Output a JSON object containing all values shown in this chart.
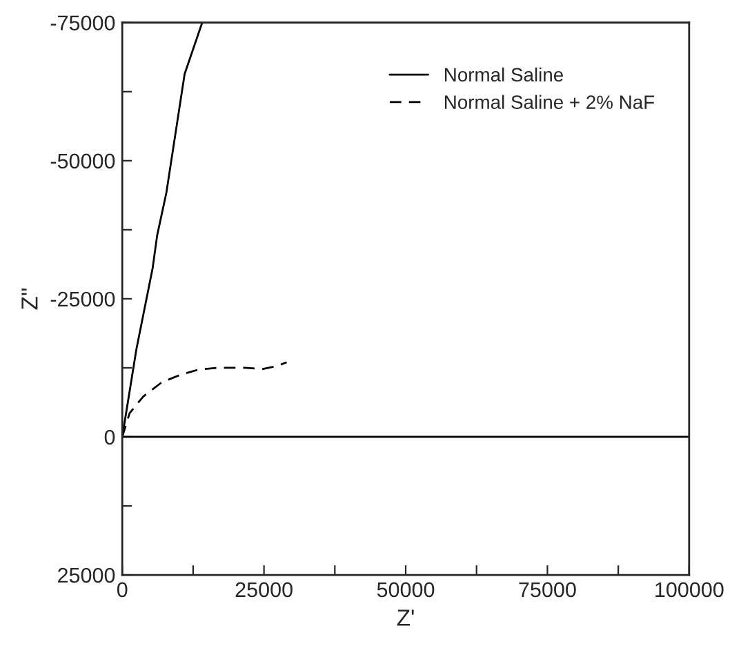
{
  "chart_data": {
    "type": "line",
    "xlabel": "Z'",
    "ylabel": "Z''",
    "xlim": [
      0,
      100000
    ],
    "ylim": [
      25000,
      -75000
    ],
    "xticks": [
      0,
      {
        "value": 12500,
        "label": null
      },
      25000,
      {
        "value": 37500,
        "label": null
      },
      50000,
      {
        "value": 62500,
        "label": null
      },
      75000,
      {
        "value": 87500,
        "label": null
      },
      100000
    ],
    "yticks": [
      {
        "value": 25000,
        "label": "25000"
      },
      {
        "value": 12500,
        "label": null
      },
      0,
      {
        "value": -12500,
        "label": null
      },
      -25000,
      {
        "value": -37500,
        "label": null
      },
      -50000,
      {
        "value": -62500,
        "label": null
      },
      -75000
    ],
    "grid": false,
    "legend": "top right",
    "ref_lines": [
      {
        "axis": "y",
        "value": 0,
        "color": "#000000",
        "line_style": "solid"
      }
    ],
    "series": [
      {
        "name": "Normal Saline",
        "color": "#000000",
        "line_style": "solid",
        "x": [
          0,
          2500,
          5350,
          6160,
          7780,
          11000,
          14100
        ],
        "values": [
          0,
          -15900,
          -30500,
          -36500,
          -44200,
          -65700,
          -75000
        ]
      },
      {
        "name": "Normal Saline + 2% NaF",
        "color": "#000000",
        "line_style": "dashed",
        "x": [
          0,
          1300,
          3700,
          7000,
          10200,
          13500,
          16700,
          21600,
          24800,
          27200,
          29000
        ],
        "values": [
          0,
          -4300,
          -7300,
          -9900,
          -11200,
          -12200,
          -12500,
          -12500,
          -12300,
          -12800,
          -13500
        ]
      }
    ]
  }
}
